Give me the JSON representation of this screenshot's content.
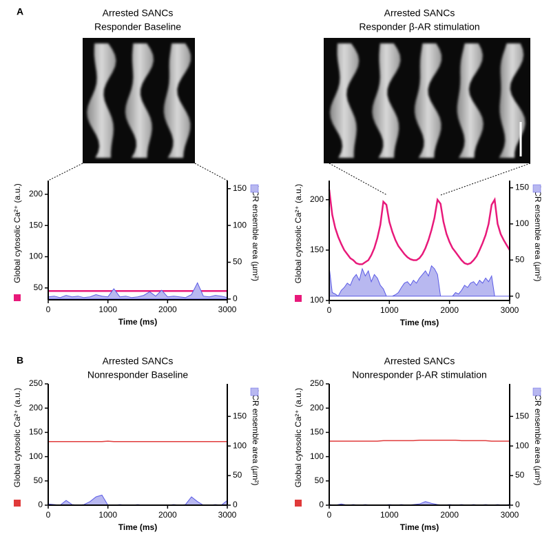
{
  "panel_labels": [
    "A",
    "B"
  ],
  "chart_data": [
    {
      "type": "line",
      "title": "Arrested SANCs",
      "subtitle": "Responder Baseline",
      "xlabel": "Time (ms)",
      "ylabel": "Global cytosolic Ca²⁺ (a.u.)",
      "y2label": "LCR ensemble area (µm²)",
      "xlim": [
        0,
        3000
      ],
      "xticks": [
        0,
        1000,
        2000,
        3000
      ],
      "ylim": [
        31,
        222
      ],
      "yticks": [
        50,
        100,
        150,
        200
      ],
      "y2lim": [
        -1,
        161
      ],
      "y2ticks": [
        0,
        50,
        100,
        150
      ],
      "x": [
        0,
        100,
        200,
        300,
        400,
        500,
        600,
        700,
        800,
        900,
        1000,
        1100,
        1200,
        1300,
        1400,
        1500,
        1600,
        1700,
        1800,
        1900,
        2000,
        2100,
        2200,
        2300,
        2400,
        2500,
        2600,
        2700,
        2800,
        2900,
        3000
      ],
      "series": [
        {
          "color": "#e8197a",
          "values": [
            45,
            45,
            45,
            45,
            45,
            45,
            45,
            45,
            45,
            45,
            45,
            45,
            45,
            45,
            45,
            45,
            45,
            45,
            45,
            45,
            45,
            45,
            45,
            45,
            45,
            45,
            45,
            45,
            45,
            45,
            45
          ]
        },
        {
          "color": "#5a5ae6",
          "fill": "#b8b8f0",
          "axis": "y2",
          "values": [
            3,
            4,
            2,
            5,
            3,
            4,
            2,
            3,
            6,
            4,
            3,
            14,
            3,
            4,
            2,
            3,
            5,
            10,
            4,
            12,
            3,
            4,
            3,
            2,
            6,
            22,
            4,
            3,
            5,
            4,
            2
          ]
        }
      ]
    },
    {
      "type": "line",
      "title": "Arrested SANCs",
      "subtitle": "Responder β-AR stimulation",
      "xlabel": "Time (ms)",
      "ylabel": "Global cytosolic Ca²⁺ (a.u.)",
      "y2label": "LCR ensemble area (µm²)",
      "xlim": [
        0,
        3000
      ],
      "xticks": [
        0,
        1000,
        2000,
        3000
      ],
      "ylim": [
        100,
        219
      ],
      "yticks": [
        100,
        150,
        200
      ],
      "y2lim": [
        -6,
        160
      ],
      "y2ticks": [
        0,
        50,
        100,
        150
      ],
      "x": [
        0,
        50,
        100,
        150,
        200,
        250,
        300,
        350,
        400,
        450,
        500,
        550,
        600,
        650,
        700,
        750,
        800,
        850,
        900,
        950,
        1000,
        1050,
        1100,
        1150,
        1200,
        1250,
        1300,
        1350,
        1400,
        1450,
        1500,
        1550,
        1600,
        1650,
        1700,
        1750,
        1800,
        1850,
        1900,
        1950,
        2000,
        2050,
        2100,
        2150,
        2200,
        2250,
        2300,
        2350,
        2400,
        2450,
        2500,
        2550,
        2600,
        2650,
        2700,
        2750,
        2800,
        2850,
        2900,
        2950,
        3000
      ],
      "series": [
        {
          "color": "#e8197a",
          "values": [
            210,
            185,
            172,
            163,
            156,
            150,
            146,
            142,
            140,
            137,
            136,
            136,
            138,
            140,
            145,
            152,
            162,
            175,
            198,
            195,
            178,
            168,
            160,
            154,
            150,
            146,
            143,
            141,
            140,
            140,
            142,
            146,
            152,
            160,
            170,
            182,
            200,
            196,
            178,
            166,
            158,
            152,
            148,
            144,
            140,
            137,
            136,
            137,
            140,
            144,
            150,
            157,
            165,
            176,
            195,
            200,
            176,
            166,
            160,
            155,
            150
          ]
        },
        {
          "color": "#5a5ae6",
          "fill": "#b8b8f0",
          "axis": "y2",
          "values": [
            40,
            5,
            3,
            0,
            8,
            12,
            18,
            15,
            25,
            30,
            22,
            38,
            28,
            35,
            20,
            30,
            25,
            15,
            10,
            0,
            0,
            0,
            2,
            5,
            12,
            18,
            20,
            15,
            22,
            18,
            25,
            30,
            35,
            28,
            42,
            38,
            30,
            0,
            0,
            0,
            0,
            0,
            5,
            3,
            8,
            15,
            12,
            18,
            20,
            15,
            22,
            18,
            25,
            20,
            28,
            0,
            0,
            0,
            0,
            0,
            0
          ]
        }
      ]
    },
    {
      "type": "line",
      "title": "Arrested SANCs",
      "subtitle": "Nonresponder Baseline",
      "xlabel": "Time (ms)",
      "ylabel": "Global cytosolic Ca²⁺ (a.u.)",
      "y2label": "LCR ensemble area (µm²)",
      "xlim": [
        0,
        3000
      ],
      "xticks": [
        0,
        1000,
        2000,
        3000
      ],
      "ylim": [
        0,
        250
      ],
      "yticks": [
        0,
        50,
        100,
        150,
        200,
        250
      ],
      "y2lim": [
        0,
        205
      ],
      "y2ticks": [
        0,
        50,
        100,
        150
      ],
      "x": [
        0,
        100,
        200,
        300,
        400,
        500,
        600,
        700,
        800,
        900,
        1000,
        1100,
        1200,
        1300,
        1400,
        1500,
        1600,
        1700,
        1800,
        1900,
        2000,
        2100,
        2200,
        2300,
        2400,
        2500,
        2600,
        2700,
        2800,
        2900,
        3000
      ],
      "series": [
        {
          "color": "#e03a3a",
          "values": [
            131,
            131,
            131,
            131,
            131,
            131,
            131,
            131,
            131,
            131,
            132,
            131,
            131,
            131,
            131,
            131,
            131,
            131,
            131,
            131,
            131,
            131,
            131,
            131,
            131,
            131,
            131,
            131,
            131,
            131,
            131
          ]
        },
        {
          "color": "#5a5ae6",
          "fill": "#b8b8f0",
          "axis": "y2",
          "values": [
            2,
            1,
            0,
            8,
            1,
            0,
            1,
            6,
            14,
            17,
            0,
            0,
            1,
            0,
            0,
            1,
            0,
            0,
            0,
            0,
            0,
            1,
            0,
            1,
            14,
            6,
            0,
            0,
            1,
            0,
            8
          ]
        }
      ]
    },
    {
      "type": "line",
      "title": "Arrested SANCs",
      "subtitle": "Nonresponder β-AR stimulation",
      "xlabel": "Time (ms)",
      "ylabel": "Global cytosolic Ca²⁺ (a.u.)",
      "y2label": "LCR ensemble area (µm²)",
      "xlim": [
        0,
        3000
      ],
      "xticks": [
        0,
        1000,
        2000,
        3000
      ],
      "ylim": [
        0,
        250
      ],
      "yticks": [
        0,
        50,
        100,
        150,
        200,
        250
      ],
      "y2lim": [
        0,
        205
      ],
      "y2ticks": [
        0,
        50,
        100,
        150
      ],
      "x": [
        0,
        100,
        200,
        300,
        400,
        500,
        600,
        700,
        800,
        900,
        1000,
        1100,
        1200,
        1300,
        1400,
        1500,
        1600,
        1700,
        1800,
        1900,
        2000,
        2100,
        2200,
        2300,
        2400,
        2500,
        2600,
        2700,
        2800,
        2900,
        3000
      ],
      "series": [
        {
          "color": "#e03a3a",
          "values": [
            132,
            132,
            132,
            132,
            132,
            132,
            132,
            132,
            132,
            133,
            133,
            133,
            133,
            133,
            133,
            134,
            134,
            134,
            134,
            134,
            134,
            134,
            133,
            133,
            133,
            133,
            133,
            132,
            132,
            132,
            132
          ]
        },
        {
          "color": "#5a5ae6",
          "fill": "#b8b8f0",
          "axis": "y2",
          "values": [
            1,
            0,
            2,
            0,
            1,
            0,
            1,
            0,
            0,
            0,
            1,
            0,
            1,
            0,
            1,
            2,
            6,
            3,
            1,
            0,
            1,
            0,
            1,
            0,
            1,
            0,
            1,
            0,
            1,
            0,
            1
          ]
        }
      ]
    }
  ]
}
